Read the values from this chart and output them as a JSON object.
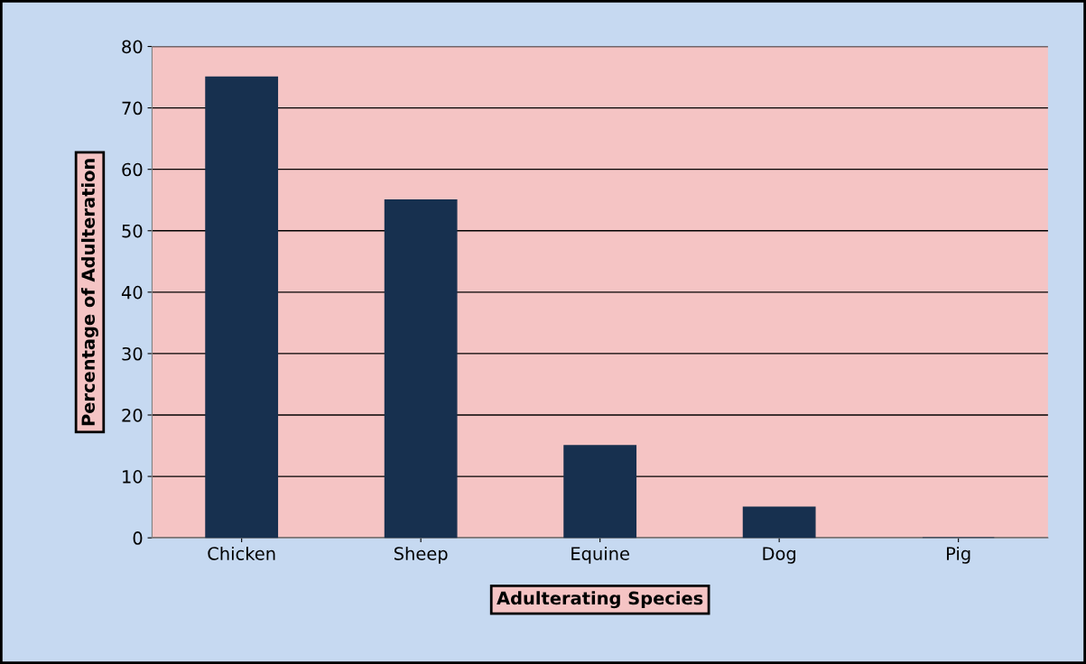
{
  "chart_data": {
    "type": "bar",
    "xlabel": "Adulterating Species",
    "ylabel": "Percentage of Adulteration",
    "categories": [
      "Chicken",
      "Sheep",
      "Equine",
      "Dog",
      "Pig"
    ],
    "values": [
      75,
      55,
      15,
      5,
      0
    ],
    "color": "#17304f",
    "ylim": [
      0,
      80
    ],
    "yticks": [
      0,
      10,
      20,
      30,
      40,
      50,
      60,
      70,
      80
    ],
    "grid": "y",
    "legend": false
  }
}
